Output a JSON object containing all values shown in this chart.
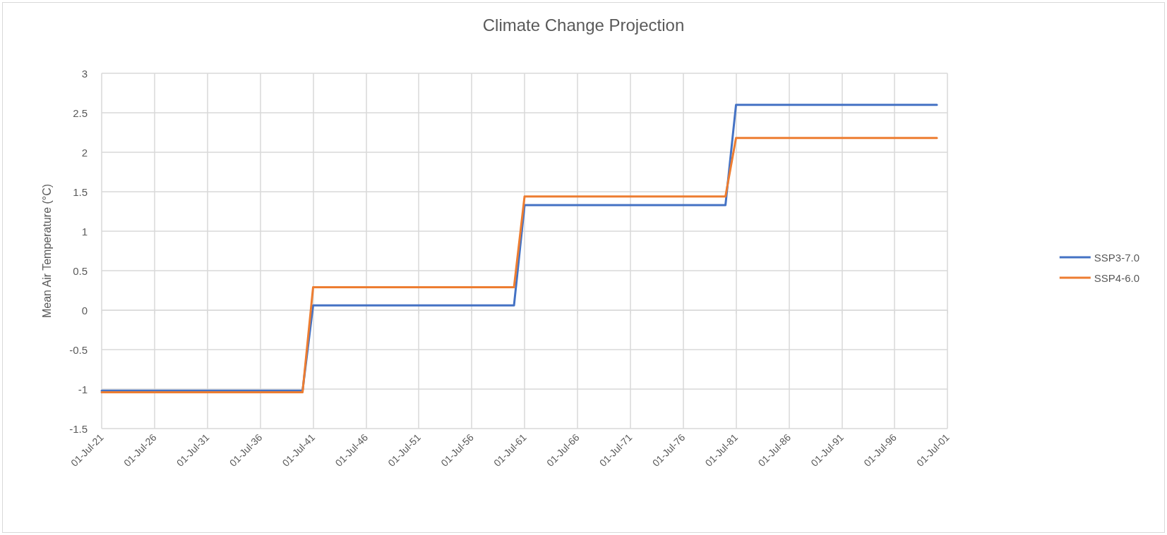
{
  "chart_data": {
    "type": "line",
    "title": "Climate Change Projection",
    "ylabel": "Mean Air Temperature (°C)",
    "x": [
      "2021-07-01",
      "2040-07-01",
      "2041-07-01",
      "2060-07-01",
      "2061-07-01",
      "2080-07-01",
      "2081-07-01",
      "2100-07-01"
    ],
    "series": [
      {
        "name": "SSP3-7.0",
        "color": "#4472c4",
        "values": [
          -1.02,
          -1.02,
          0.06,
          0.06,
          1.33,
          1.33,
          2.6,
          2.6
        ]
      },
      {
        "name": "SSP4-6.0",
        "color": "#ed7d31",
        "values": [
          -1.04,
          -1.04,
          0.29,
          0.29,
          1.44,
          1.44,
          2.18,
          2.18
        ]
      }
    ],
    "xlim": [
      "2021-07-01",
      "2101-07-01"
    ],
    "xticks": [
      {
        "value": "2021-07-01",
        "label": "01-Jul-21"
      },
      {
        "value": "2026-07-01",
        "label": "01-Jul-26"
      },
      {
        "value": "2031-07-01",
        "label": "01-Jul-31"
      },
      {
        "value": "2036-07-01",
        "label": "01-Jul-36"
      },
      {
        "value": "2041-07-01",
        "label": "01-Jul-41"
      },
      {
        "value": "2046-07-01",
        "label": "01-Jul-46"
      },
      {
        "value": "2051-07-01",
        "label": "01-Jul-51"
      },
      {
        "value": "2056-07-01",
        "label": "01-Jul-56"
      },
      {
        "value": "2061-07-01",
        "label": "01-Jul-61"
      },
      {
        "value": "2066-07-01",
        "label": "01-Jul-66"
      },
      {
        "value": "2071-07-01",
        "label": "01-Jul-71"
      },
      {
        "value": "2076-07-01",
        "label": "01-Jul-76"
      },
      {
        "value": "2081-07-01",
        "label": "01-Jul-81"
      },
      {
        "value": "2086-07-01",
        "label": "01-Jul-86"
      },
      {
        "value": "2091-07-01",
        "label": "01-Jul-91"
      },
      {
        "value": "2096-07-01",
        "label": "01-Jul-96"
      },
      {
        "value": "2101-07-01",
        "label": "01-Jul-01"
      }
    ],
    "ylim": [
      -1.5,
      3
    ],
    "yticks": [
      -1.5,
      -1,
      -0.5,
      0,
      0.5,
      1,
      1.5,
      2,
      2.5,
      3
    ],
    "grid": true,
    "legend": "right",
    "marker": "none",
    "line_style": "solid"
  }
}
